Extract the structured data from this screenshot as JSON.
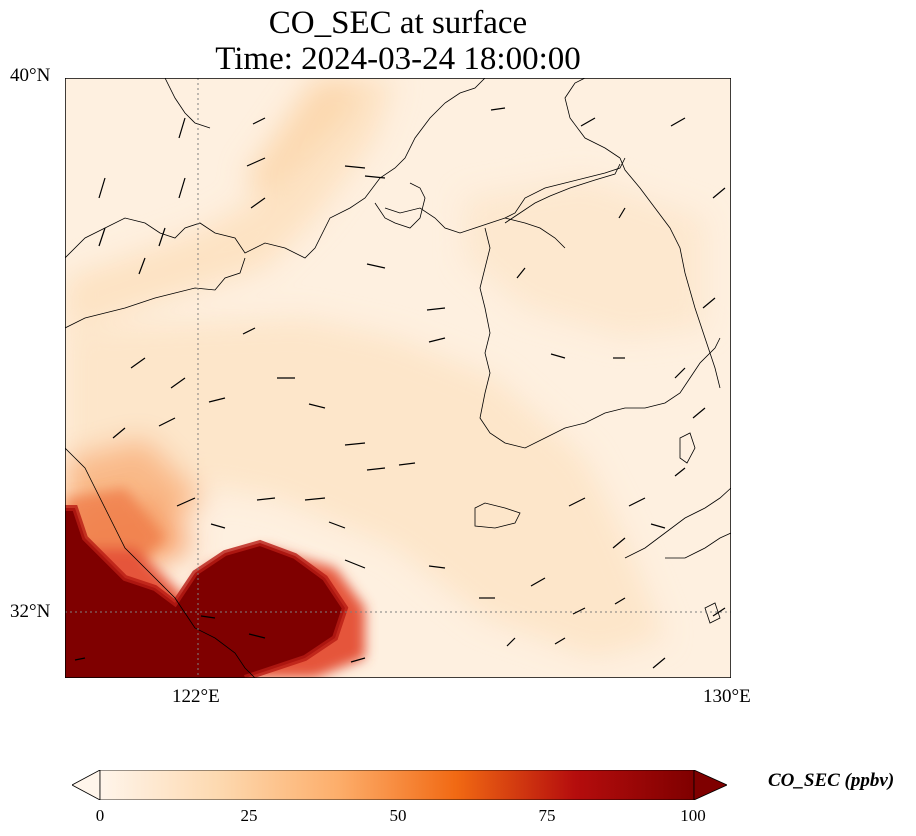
{
  "title": {
    "line1": "CO_SEC at surface",
    "line2": "Time: 2024-03-24 18:00:00"
  },
  "axes": {
    "lat_labels": [
      "40°N",
      "32°N"
    ],
    "lon_labels": [
      "122°E",
      "130°E"
    ],
    "lon_range": [
      120,
      130
    ],
    "lat_range": [
      31,
      40
    ],
    "gridlines_lon": [
      122
    ],
    "gridlines_lat": [
      32
    ]
  },
  "colorbar": {
    "label": "CO_SEC (ppbv)",
    "ticks": [
      "0",
      "25",
      "50",
      "75",
      "100"
    ],
    "range": [
      0,
      100
    ],
    "extend": "both",
    "colormap": [
      "#fff5eb",
      "#fdd0a2",
      "#fd8d3c",
      "#d94801",
      "#a50f15",
      "#7f0000"
    ]
  },
  "colors": {
    "coastline": "#000000",
    "gridline": "#7f7f7f",
    "wind_arrow": "#000000"
  },
  "chart_data": {
    "type": "heatmap",
    "variable": "CO_SEC",
    "units": "ppbv",
    "region": {
      "lon": [
        120,
        130
      ],
      "lat": [
        31,
        40
      ]
    },
    "features": [
      "coastlines",
      "wind vectors",
      "CO_SEC field"
    ]
  }
}
